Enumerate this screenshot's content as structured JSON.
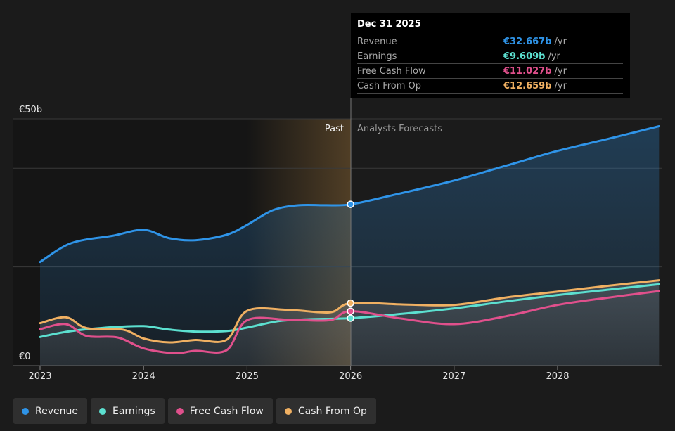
{
  "chart_data": {
    "type": "area",
    "x_ticks": [
      "2023",
      "2024",
      "2025",
      "2026",
      "2027",
      "2028"
    ],
    "y_labels": {
      "top": "€50b",
      "bottom": "€0"
    },
    "ylim": [
      0,
      50
    ],
    "grid": true,
    "region_labels": {
      "past": "Past",
      "forecast": "Analysts Forecasts"
    },
    "series": [
      {
        "name": "Revenue",
        "color": "#2f94e8",
        "points": [
          [
            2023.0,
            21.0
          ],
          [
            2023.3,
            24.8
          ],
          [
            2023.7,
            26.3
          ],
          [
            2024.0,
            27.5
          ],
          [
            2024.25,
            25.8
          ],
          [
            2024.5,
            25.4
          ],
          [
            2024.8,
            26.5
          ],
          [
            2025.0,
            28.5
          ],
          [
            2025.25,
            31.5
          ],
          [
            2025.5,
            32.5
          ],
          [
            2025.75,
            32.5
          ],
          [
            2026.0,
            32.667
          ],
          [
            2026.4,
            34.5
          ],
          [
            2027.0,
            37.5
          ],
          [
            2027.5,
            40.5
          ],
          [
            2028.0,
            43.5
          ],
          [
            2028.5,
            46.0
          ],
          [
            2028.98,
            48.5
          ]
        ]
      },
      {
        "name": "Earnings",
        "color": "#5ce0d0",
        "points": [
          [
            2023.0,
            5.8
          ],
          [
            2023.3,
            7.0
          ],
          [
            2023.7,
            7.8
          ],
          [
            2024.0,
            8.0
          ],
          [
            2024.25,
            7.3
          ],
          [
            2024.5,
            6.9
          ],
          [
            2024.8,
            7.0
          ],
          [
            2025.0,
            7.7
          ],
          [
            2025.3,
            9.0
          ],
          [
            2025.6,
            9.4
          ],
          [
            2026.0,
            9.609
          ],
          [
            2026.5,
            10.5
          ],
          [
            2027.0,
            11.6
          ],
          [
            2027.5,
            13.0
          ],
          [
            2028.0,
            14.3
          ],
          [
            2028.5,
            15.4
          ],
          [
            2028.98,
            16.5
          ]
        ]
      },
      {
        "name": "Free Cash Flow",
        "color": "#e0508c",
        "points": [
          [
            2023.0,
            7.4
          ],
          [
            2023.25,
            8.4
          ],
          [
            2023.45,
            6.0
          ],
          [
            2023.75,
            5.7
          ],
          [
            2024.0,
            3.5
          ],
          [
            2024.3,
            2.5
          ],
          [
            2024.5,
            3.0
          ],
          [
            2024.8,
            3.1
          ],
          [
            2025.0,
            9.2
          ],
          [
            2025.4,
            9.3
          ],
          [
            2025.8,
            9.2
          ],
          [
            2026.0,
            11.027
          ],
          [
            2026.5,
            9.5
          ],
          [
            2027.0,
            8.4
          ],
          [
            2027.5,
            10.0
          ],
          [
            2028.0,
            12.3
          ],
          [
            2028.5,
            13.8
          ],
          [
            2028.98,
            15.1
          ]
        ]
      },
      {
        "name": "Cash From Op",
        "color": "#f0b062",
        "points": [
          [
            2023.0,
            8.6
          ],
          [
            2023.25,
            9.8
          ],
          [
            2023.45,
            7.6
          ],
          [
            2023.8,
            7.3
          ],
          [
            2024.0,
            5.5
          ],
          [
            2024.25,
            4.7
          ],
          [
            2024.5,
            5.2
          ],
          [
            2024.8,
            5.2
          ],
          [
            2025.0,
            11.1
          ],
          [
            2025.4,
            11.3
          ],
          [
            2025.8,
            10.8
          ],
          [
            2026.0,
            12.659
          ],
          [
            2026.5,
            12.4
          ],
          [
            2027.0,
            12.3
          ],
          [
            2027.5,
            13.8
          ],
          [
            2028.0,
            15.0
          ],
          [
            2028.5,
            16.2
          ],
          [
            2028.98,
            17.3
          ]
        ]
      }
    ]
  },
  "tooltip": {
    "date": "Dec 31 2025",
    "unit": "/yr",
    "rows": [
      {
        "label": "Revenue",
        "value": "€32.667b",
        "color": "#2f94e8"
      },
      {
        "label": "Earnings",
        "value": "€9.609b",
        "color": "#5ce0d0"
      },
      {
        "label": "Free Cash Flow",
        "value": "€11.027b",
        "color": "#e0508c"
      },
      {
        "label": "Cash From Op",
        "value": "€12.659b",
        "color": "#f0b062"
      }
    ]
  },
  "legend": [
    {
      "label": "Revenue",
      "color": "#2f94e8"
    },
    {
      "label": "Earnings",
      "color": "#5ce0d0"
    },
    {
      "label": "Free Cash Flow",
      "color": "#e0508c"
    },
    {
      "label": "Cash From Op",
      "color": "#f0b062"
    }
  ]
}
